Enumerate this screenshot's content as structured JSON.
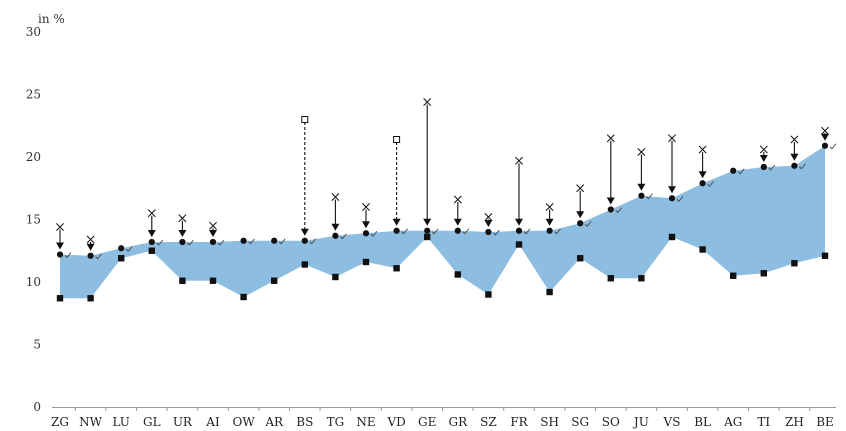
{
  "chart_data": {
    "type": "area",
    "y_unit_label": "in %",
    "ylim": [
      0,
      30
    ],
    "yticks": [
      0,
      5,
      10,
      15,
      20,
      25,
      30
    ],
    "grid": false,
    "legend": "none",
    "colors": {
      "band": "#8dbde0",
      "marker": "#111111",
      "arrow": "#111111",
      "axis": "#999999"
    },
    "categories": [
      "ZG",
      "NW",
      "LU",
      "GL",
      "UR",
      "AI",
      "OW",
      "AR",
      "BS",
      "TG",
      "NE",
      "VD",
      "GE",
      "GR",
      "SZ",
      "FR",
      "SH",
      "SG",
      "SO",
      "JU",
      "VS",
      "BL",
      "AG",
      "TI",
      "ZH",
      "BE"
    ],
    "series": [
      {
        "values": [
          12.2,
          12.1,
          12.7,
          13.2,
          13.2,
          13.2,
          13.3,
          13.3,
          13.3,
          13.7,
          13.9,
          14.1,
          14.1,
          14.1,
          14.0,
          14.1,
          14.1,
          14.7,
          15.8,
          16.9,
          16.7,
          17.9,
          18.9,
          19.2,
          19.3,
          20.9
        ]
      },
      {
        "values": [
          8.7,
          8.7,
          11.9,
          12.5,
          10.1,
          10.1,
          8.8,
          10.1,
          11.4,
          10.4,
          11.6,
          11.1,
          13.6,
          10.6,
          9.0,
          13.0,
          9.2,
          11.9,
          10.3,
          10.3,
          13.6,
          12.6,
          10.5,
          10.7,
          11.5,
          12.1
        ]
      },
      {
        "values": [
          14.4,
          13.4,
          null,
          15.5,
          15.1,
          14.5,
          null,
          null,
          null,
          16.8,
          16.0,
          null,
          24.4,
          16.6,
          15.2,
          19.7,
          16.0,
          17.5,
          21.5,
          20.4,
          21.5,
          20.6,
          null,
          20.6,
          21.4,
          22.1
        ]
      },
      {
        "values": [
          null,
          null,
          null,
          null,
          null,
          null,
          null,
          null,
          23.0,
          null,
          null,
          21.4,
          null,
          null,
          null,
          null,
          null,
          null,
          null,
          null,
          null,
          null,
          null,
          null,
          null,
          null
        ]
      }
    ]
  }
}
